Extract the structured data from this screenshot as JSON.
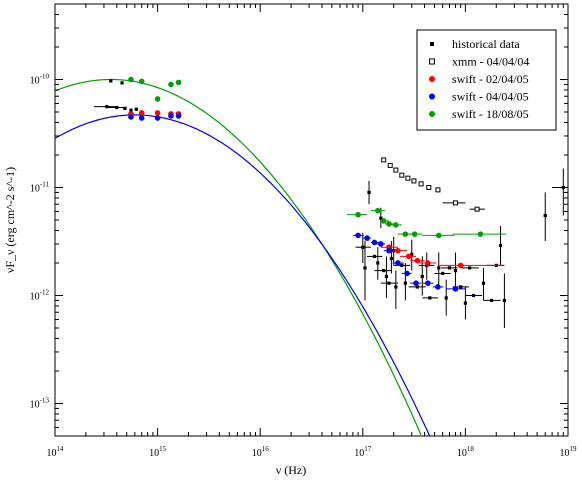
{
  "chart_data": {
    "type": "scatter",
    "xlabel": "ν (Hz)",
    "ylabel": "νF_ν (erg cm^-2 s^-1)",
    "xscale": "log",
    "yscale": "log",
    "xlim": [
      100000000000000.0,
      1e+19
    ],
    "ylim": [
      5e-14,
      5e-10
    ],
    "x_ticks": [
      {
        "value": 100000000000000.0,
        "base": "10",
        "exp": "14"
      },
      {
        "value": 1000000000000000.0,
        "base": "10",
        "exp": "15"
      },
      {
        "value": 1e+16,
        "base": "10",
        "exp": "16"
      },
      {
        "value": 1e+17,
        "base": "10",
        "exp": "17"
      },
      {
        "value": 1e+18,
        "base": "10",
        "exp": "18"
      },
      {
        "value": 1e+19,
        "base": "10",
        "exp": "19"
      }
    ],
    "y_ticks": [
      {
        "value": 1e-13,
        "base": "10",
        "exp": "-13"
      },
      {
        "value": 1e-12,
        "base": "10",
        "exp": "-12"
      },
      {
        "value": 1e-11,
        "base": "10",
        "exp": "-11"
      },
      {
        "value": 1e-10,
        "base": "10",
        "exp": "-10"
      }
    ],
    "legend_position": "top-right",
    "legend": [
      {
        "label": "historical data",
        "color": "#000000",
        "marker": "filled-square"
      },
      {
        "label": "xmm - 04/04/04",
        "color": "#000000",
        "marker": "open-square"
      },
      {
        "label": "swift - 02/04/05",
        "color": "#ff0000",
        "marker": "circle"
      },
      {
        "label": "swift - 04/04/05",
        "color": "#0000ff",
        "marker": "circle"
      },
      {
        "label": "swift - 18/08/05",
        "color": "#00a000",
        "marker": "circle"
      }
    ],
    "series": [
      {
        "name": "historical data",
        "color": "#000000",
        "marker": "filled-square",
        "points": [
          {
            "x": 350000000000000.0,
            "y": 9.7e-11
          },
          {
            "x": 450000000000000.0,
            "y": 9.3e-11
          },
          {
            "x": 320000000000000.0,
            "y": 5.6e-11,
            "xlo": 240000000000000.0,
            "xhi": 410000000000000.0
          },
          {
            "x": 400000000000000.0,
            "y": 5.5e-11,
            "xlo": 330000000000000.0,
            "xhi": 500000000000000.0
          },
          {
            "x": 480000000000000.0,
            "y": 5.4e-11
          },
          {
            "x": 550000000000000.0,
            "y": 5.2e-11
          },
          {
            "x": 620000000000000.0,
            "y": 5.3e-11
          },
          {
            "x": 1.15e+17,
            "y": 9e-12,
            "ylo": 7e-12,
            "yhi": 1.15e-11
          },
          {
            "x": 1e+17,
            "y": 2.8e-12,
            "ylo": 2e-12,
            "yhi": 3.8e-12,
            "xlo": 8.5e+16,
            "xhi": 1.2e+17
          },
          {
            "x": 1.05e+17,
            "y": 1.8e-12,
            "ylo": 9e-13,
            "yhi": 3.2e-12
          },
          {
            "x": 1.3e+17,
            "y": 2.3e-12,
            "xlo": 1.1e+17,
            "xhi": 1.55e+17
          },
          {
            "x": 1.4e+17,
            "y": 2e-12,
            "ylo": 1.4e-12,
            "yhi": 2.8e-12
          },
          {
            "x": 1.5e+17,
            "y": 5.2e-12,
            "ylo": 4.2e-12,
            "yhi": 6.5e-12
          },
          {
            "x": 1.6e+17,
            "y": 1.7e-12,
            "xlo": 1.3e+17,
            "xhi": 1.9e+17
          },
          {
            "x": 1.7e+17,
            "y": 1.5e-12,
            "ylo": 9.5e-13,
            "yhi": 2.3e-12
          },
          {
            "x": 1.8e+17,
            "y": 1.3e-12,
            "xlo": 1.5e+17,
            "xhi": 2.2e+17
          },
          {
            "x": 1.9e+17,
            "y": 2.2e-12,
            "ylo": 1.6e-12,
            "yhi": 3.2e-12
          },
          {
            "x": 2e+17,
            "y": 2.6e-12,
            "ylo": 1.9e-12,
            "yhi": 3.5e-12
          },
          {
            "x": 2.1e+17,
            "y": 1.2e-12,
            "ylo": 7.5e-13,
            "yhi": 1.7e-12
          },
          {
            "x": 2.4e+17,
            "y": 1.9e-12,
            "xlo": 2e+17,
            "xhi": 2.9e+17
          },
          {
            "x": 2.6e+17,
            "y": 1.3e-12,
            "ylo": 9e-13,
            "yhi": 2e-12
          },
          {
            "x": 3e+17,
            "y": 2.4e-12,
            "ylo": 1.7e-12,
            "yhi": 3.3e-12
          },
          {
            "x": 3.4e+17,
            "y": 1.2e-12,
            "xlo": 2.8e+17,
            "xhi": 4.1e+17
          },
          {
            "x": 3.8e+17,
            "y": 1.5e-12,
            "ylo": 1e-12,
            "yhi": 2.3e-12
          },
          {
            "x": 4.2e+17,
            "y": 1.9e-12,
            "ylo": 1.4e-12,
            "yhi": 2.5e-12,
            "xlo": 3.5e+17,
            "xhi": 5e+17
          },
          {
            "x": 4.5e+17,
            "y": 9.5e-13,
            "xlo": 3.8e+17,
            "xhi": 5.4e+17
          },
          {
            "x": 5.5e+17,
            "y": 1.8e-12,
            "ylo": 1.2e-12,
            "yhi": 2.5e-12
          },
          {
            "x": 6e+17,
            "y": 1.6e-12,
            "xlo": 5e+17,
            "xhi": 7.2e+17
          },
          {
            "x": 6.5e+17,
            "y": 9.5e-13,
            "ylo": 6.5e-13,
            "yhi": 1.4e-12
          },
          {
            "x": 7e+17,
            "y": 1.8e-12,
            "xlo": 5.8e+17,
            "xhi": 8.4e+17
          },
          {
            "x": 8e+17,
            "y": 1.7e-12,
            "ylo": 1.2e-12,
            "yhi": 2.5e-12
          },
          {
            "x": 9e+17,
            "y": 1.2e-12,
            "xlo": 7.5e+17,
            "xhi": 1.08e+18
          },
          {
            "x": 1e+18,
            "y": 8.5e-13,
            "ylo": 6e-13,
            "yhi": 1.2e-12
          },
          {
            "x": 1.1e+18,
            "y": 1.8e-12,
            "xlo": 9e+17,
            "xhi": 1.35e+18
          },
          {
            "x": 1.2e+18,
            "y": 1e-12,
            "xlo": 1e+18,
            "xhi": 1.45e+18
          },
          {
            "x": 1.5e+18,
            "y": 1.3e-12,
            "ylo": 9e-13,
            "yhi": 1.8e-12
          },
          {
            "x": 1.8e+18,
            "y": 9e-13,
            "xlo": 1.5e+18,
            "xhi": 2.2e+18
          },
          {
            "x": 2.2e+18,
            "y": 2.9e-12,
            "ylo": 1.9e-12,
            "yhi": 4.4e-12
          },
          {
            "x": 2.4e+18,
            "y": 9e-13,
            "ylo": 5e-13,
            "yhi": 1.6e-12
          },
          {
            "x": 2e+18,
            "y": 1.9e-12,
            "xlo": 1.6e+18,
            "xhi": 2.4e+18
          },
          {
            "x": 6e+18,
            "y": 5.5e-12,
            "ylo": 3.2e-12,
            "yhi": 9e-12
          },
          {
            "x": 9e+18,
            "y": 1e-11,
            "ylo": 5.5e-12,
            "yhi": 1.5e-11,
            "xlo": 7e+18,
            "xhi": 1e+19
          }
        ]
      },
      {
        "name": "xmm - 04/04/04",
        "color": "#000000",
        "marker": "open-square",
        "points": [
          {
            "x": 1.6e+17,
            "y": 1.8e-11
          },
          {
            "x": 1.85e+17,
            "y": 1.6e-11
          },
          {
            "x": 2.1e+17,
            "y": 1.45e-11
          },
          {
            "x": 2.4e+17,
            "y": 1.3e-11
          },
          {
            "x": 2.75e+17,
            "y": 1.22e-11
          },
          {
            "x": 3.15e+17,
            "y": 1.15e-11
          },
          {
            "x": 3.7e+17,
            "y": 1.08e-11
          },
          {
            "x": 4.4e+17,
            "y": 1e-11
          },
          {
            "x": 5.4e+17,
            "y": 9.5e-12
          },
          {
            "x": 8e+17,
            "y": 7.2e-12,
            "xlo": 6e+17,
            "xhi": 1e+18
          },
          {
            "x": 1.3e+18,
            "y": 6.3e-12,
            "xlo": 1.1e+18,
            "xhi": 1.55e+18
          }
        ]
      },
      {
        "name": "swift - 02/04/05",
        "color": "#ff0000",
        "marker": "circle",
        "points": [
          {
            "x": 550000000000000.0,
            "y": 4.8e-11
          },
          {
            "x": 700000000000000.0,
            "y": 4.9e-11
          },
          {
            "x": 1000000000000000.0,
            "y": 4.9e-11
          },
          {
            "x": 1350000000000000.0,
            "y": 4.8e-11
          },
          {
            "x": 1600000000000000.0,
            "y": 4.8e-11
          },
          {
            "x": 1.8e+17,
            "y": 2.8e-12,
            "xlo": 1.5e+17,
            "xhi": 2.2e+17
          },
          {
            "x": 2.2e+17,
            "y": 2.6e-12,
            "xlo": 1.9e+17,
            "xhi": 2.7e+17
          },
          {
            "x": 2.8e+17,
            "y": 2.3e-12,
            "xlo": 2.3e+17,
            "xhi": 3.3e+17
          },
          {
            "x": 3.4e+17,
            "y": 2.1e-12,
            "xlo": 2.9e+17,
            "xhi": 4e+17
          },
          {
            "x": 4.3e+17,
            "y": 2e-12,
            "xlo": 3.5e+17,
            "xhi": 5.2e+17
          },
          {
            "x": 9e+17,
            "y": 1.9e-12,
            "xlo": 5.4e+17,
            "xhi": 2.3e+18
          }
        ]
      },
      {
        "name": "swift - 04/04/05",
        "color": "#0000ff",
        "marker": "circle",
        "points": [
          {
            "x": 550000000000000.0,
            "y": 4.5e-11
          },
          {
            "x": 700000000000000.0,
            "y": 4.4e-11
          },
          {
            "x": 1000000000000000.0,
            "y": 4.4e-11
          },
          {
            "x": 1350000000000000.0,
            "y": 4.6e-11
          },
          {
            "x": 1600000000000000.0,
            "y": 4.6e-11
          },
          {
            "x": 9e+16,
            "y": 3.6e-12,
            "xlo": 8e+16,
            "xhi": 1.02e+17
          },
          {
            "x": 1.1e+17,
            "y": 3.4e-12,
            "xlo": 1e+17,
            "xhi": 1.2e+17
          },
          {
            "x": 1.3e+17,
            "y": 3.1e-12,
            "xlo": 1.2e+17,
            "xhi": 1.45e+17
          },
          {
            "x": 1.5e+17,
            "y": 3e-12,
            "xlo": 1.35e+17,
            "xhi": 1.65e+17
          },
          {
            "x": 1.8e+17,
            "y": 2.6e-12,
            "xlo": 1.6e+17,
            "xhi": 2e+17
          },
          {
            "x": 2.2e+17,
            "y": 2e-12,
            "xlo": 1.95e+17,
            "xhi": 2.5e+17
          },
          {
            "x": 2.7e+17,
            "y": 1.6e-12,
            "xlo": 2.4e+17,
            "xhi": 3e+17
          },
          {
            "x": 3.3e+17,
            "y": 1.3e-12,
            "xlo": 2.9e+17,
            "xhi": 3.7e+17
          },
          {
            "x": 4.3e+17,
            "y": 1.3e-12,
            "xlo": 3.8e+17,
            "xhi": 4.9e+17
          },
          {
            "x": 5.4e+17,
            "y": 1.2e-12,
            "xlo": 4.8e+17,
            "xhi": 6.1e+17
          },
          {
            "x": 8e+17,
            "y": 1.15e-12,
            "xlo": 6.5e+17,
            "xhi": 1e+18
          }
        ]
      },
      {
        "name": "swift - 18/08/05",
        "color": "#00a000",
        "marker": "circle",
        "points": [
          {
            "x": 550000000000000.0,
            "y": 1e-10
          },
          {
            "x": 700000000000000.0,
            "y": 9.6e-11
          },
          {
            "x": 1000000000000000.0,
            "y": 6.6e-11
          },
          {
            "x": 1350000000000000.0,
            "y": 9e-11
          },
          {
            "x": 1600000000000000.0,
            "y": 9.4e-11
          },
          {
            "x": 9e+16,
            "y": 5.6e-12,
            "xlo": 7e+16,
            "xhi": 1.1e+17
          },
          {
            "x": 1.4e+17,
            "y": 6.1e-12,
            "xlo": 1.2e+17,
            "xhi": 1.65e+17
          },
          {
            "x": 1.6e+17,
            "y": 4.9e-12,
            "xlo": 1.5e+17,
            "xhi": 1.8e+17
          },
          {
            "x": 1.8e+17,
            "y": 4.6e-12,
            "xlo": 1.65e+17,
            "xhi": 2e+17
          },
          {
            "x": 2.1e+17,
            "y": 4.5e-12,
            "xlo": 1.9e+17,
            "xhi": 2.4e+17
          },
          {
            "x": 2.6e+17,
            "y": 3.7e-12,
            "xlo": 2.2e+17,
            "xhi": 3.1e+17
          },
          {
            "x": 3.2e+17,
            "y": 3.7e-12,
            "xlo": 2.8e+17,
            "xhi": 3.8e+17
          },
          {
            "x": 5.5e+17,
            "y": 3.6e-12,
            "xlo": 3.8e+17,
            "xhi": 7.8e+17
          },
          {
            "x": 1.4e+18,
            "y": 3.7e-12,
            "xlo": 7.5e+17,
            "xhi": 2.5e+18
          }
        ]
      }
    ],
    "curves": [
      {
        "color": "#00a000",
        "peak_x": 350000000000000.0,
        "peak_y": 1e-10,
        "curvature": 0.36
      },
      {
        "color": "#0000ff",
        "peak_x": 600000000000000.0,
        "peak_y": 4.7e-11,
        "curvature": 0.36
      }
    ]
  }
}
